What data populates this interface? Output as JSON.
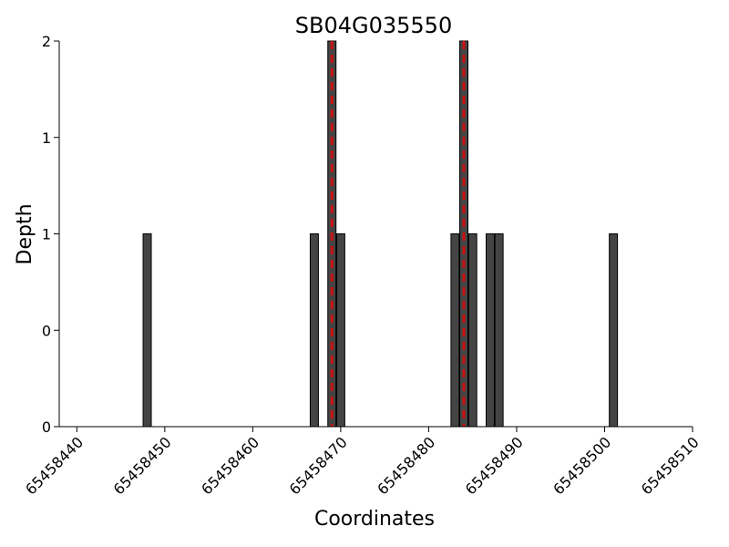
{
  "chart_data": {
    "type": "bar",
    "title": "SB04G035550",
    "xlabel": "Coordinates",
    "ylabel": "Depth",
    "xlim": [
      65458438,
      65458510
    ],
    "ylim": [
      0,
      2
    ],
    "x_ticks": [
      65458440,
      65458450,
      65458460,
      65458470,
      65458480,
      65458490,
      65458500,
      65458510
    ],
    "y_tick_labels": [
      "0",
      "0",
      "1",
      "1",
      "2"
    ],
    "y_tick_values": [
      0,
      0.5,
      1,
      1.5,
      2
    ],
    "grid": false,
    "bar_color": "#444444",
    "marker_color": "#cc1111",
    "bars": [
      {
        "x": 65458448,
        "depth": 1
      },
      {
        "x": 65458467,
        "depth": 1
      },
      {
        "x": 65458469,
        "depth": 2
      },
      {
        "x": 65458470,
        "depth": 1
      },
      {
        "x": 65458483,
        "depth": 1
      },
      {
        "x": 65458484,
        "depth": 2
      },
      {
        "x": 65458485,
        "depth": 1
      },
      {
        "x": 65458487,
        "depth": 1
      },
      {
        "x": 65458488,
        "depth": 1
      },
      {
        "x": 65458501,
        "depth": 1
      }
    ],
    "markers": [
      65458469,
      65458484
    ]
  }
}
